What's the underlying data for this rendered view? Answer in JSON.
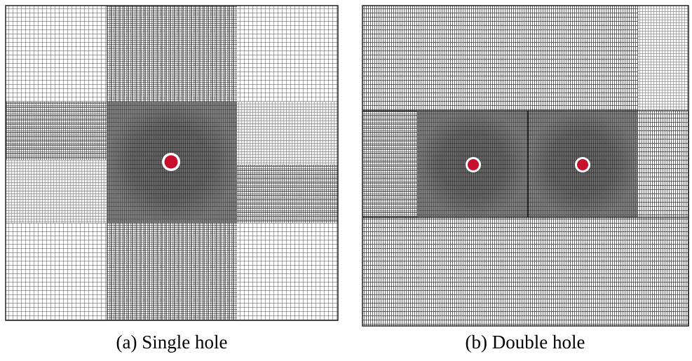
{
  "panels": [
    {
      "caption": "(a) Single hole"
    },
    {
      "caption": "(b) Double hole"
    }
  ]
}
